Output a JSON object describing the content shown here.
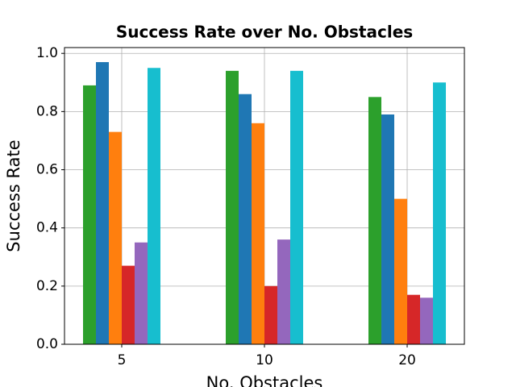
{
  "chart_data": {
    "type": "bar",
    "title": "Success Rate over No. Obstacles",
    "x_label": "No. Obstacles",
    "y_label": "Success Rate",
    "categories": [
      "5",
      "10",
      "20"
    ],
    "series": [
      {
        "color": "#2ca02c",
        "values": [
          0.89,
          0.94,
          0.85
        ]
      },
      {
        "color": "#1f77b4",
        "values": [
          0.97,
          0.86,
          0.79
        ]
      },
      {
        "color": "#ff7f0e",
        "values": [
          0.73,
          0.76,
          0.5
        ]
      },
      {
        "color": "#d62728",
        "values": [
          0.27,
          0.2,
          0.17
        ]
      },
      {
        "color": "#9467bd",
        "values": [
          0.35,
          0.36,
          0.16
        ]
      },
      {
        "color": "#17becf",
        "values": [
          0.95,
          0.94,
          0.9
        ]
      }
    ],
    "ylim": [
      0,
      1.02
    ],
    "yticks": [
      {
        "value": 0,
        "label": "0.0"
      },
      0.2,
      0.4,
      0.6,
      0.8,
      {
        "value": 1,
        "label": "1.0"
      }
    ],
    "grid": true
  }
}
